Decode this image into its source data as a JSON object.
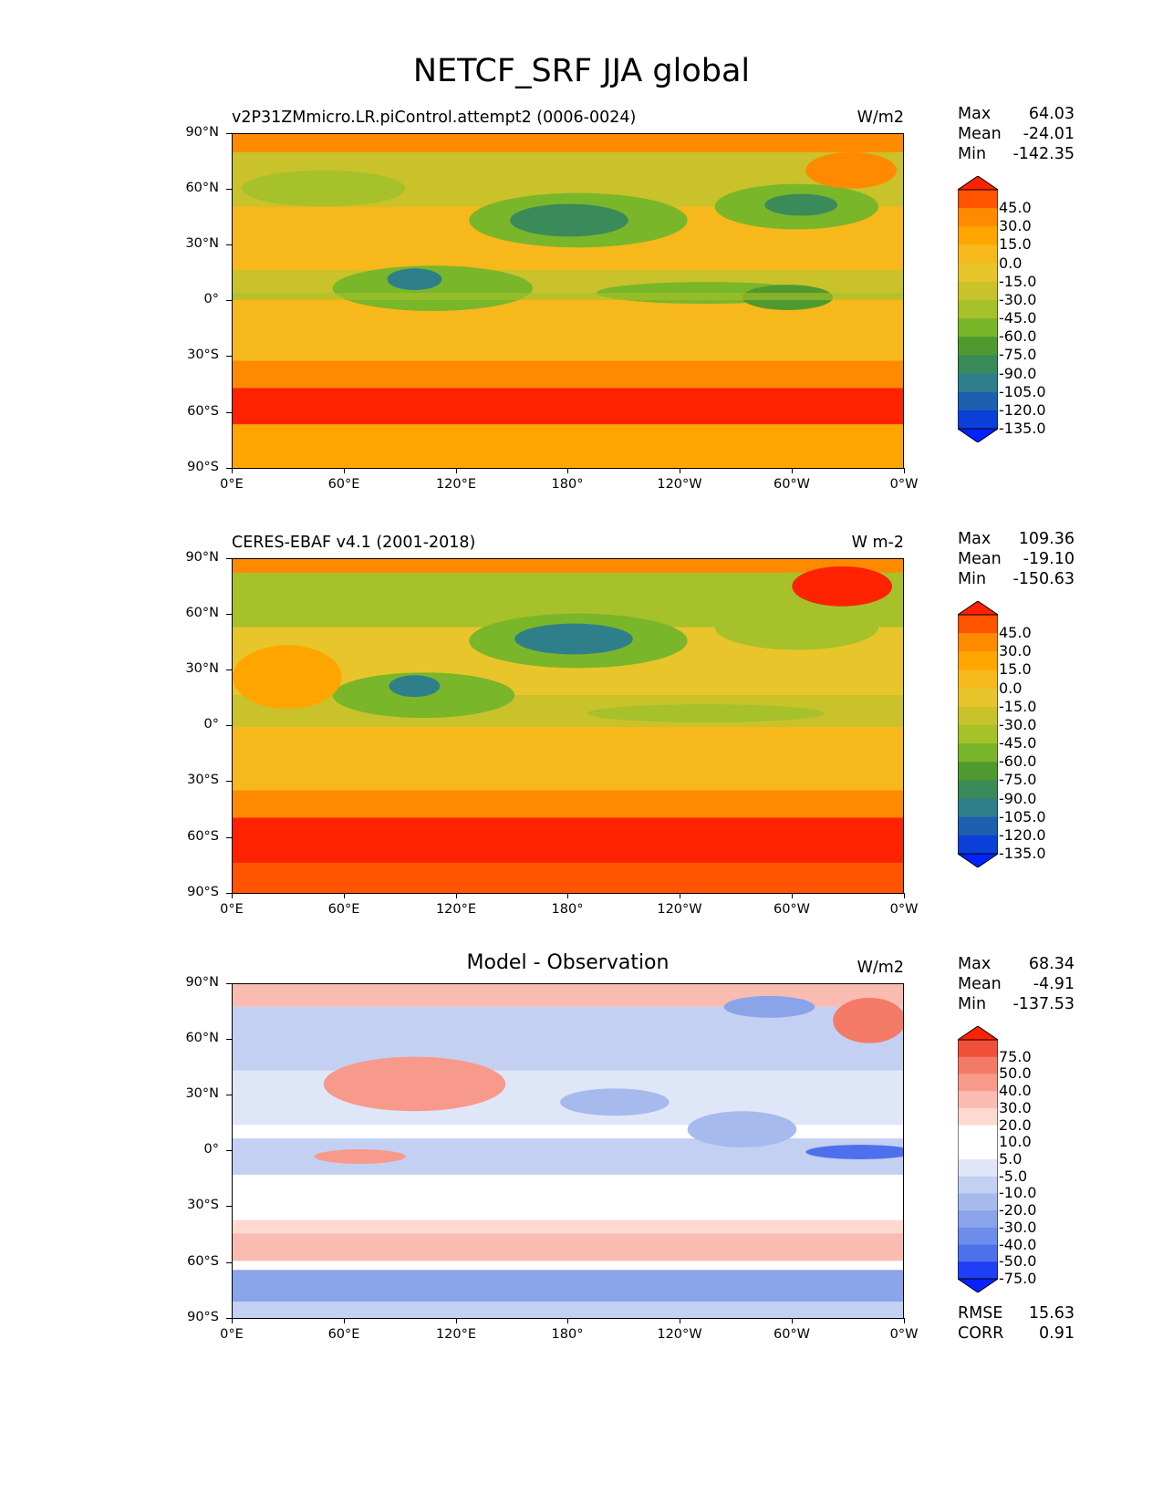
{
  "figure": {
    "title": "NETCF_SRF JJA global"
  },
  "axes": {
    "yticks": [
      "90°N",
      "60°N",
      "30°N",
      "0°",
      "30°S",
      "60°S",
      "90°S"
    ],
    "xticks": [
      "0°E",
      "60°E",
      "120°E",
      "180°",
      "120°W",
      "60°W",
      "0°W"
    ]
  },
  "panels": [
    {
      "title_left": "v2P31ZMmicro.LR.piControl.attempt2 (0006-0024)",
      "title_center": "",
      "units": "W/m2",
      "stats": [
        {
          "label": "Max",
          "value": "64.03"
        },
        {
          "label": "Mean",
          "value": "-24.01"
        },
        {
          "label": "Min",
          "value": "-142.35"
        }
      ],
      "colorbar_labels": [
        "45.0",
        "30.0",
        "15.0",
        "0.0",
        "-15.0",
        "-30.0",
        "-45.0",
        "-60.0",
        "-75.0",
        "-90.0",
        "-105.0",
        "-120.0",
        "-135.0"
      ]
    },
    {
      "title_left": "CERES-EBAF v4.1 (2001-2018)",
      "title_center": "",
      "units": "W m-2",
      "stats": [
        {
          "label": "Max",
          "value": "109.36"
        },
        {
          "label": "Mean",
          "value": "-19.10"
        },
        {
          "label": "Min",
          "value": "-150.63"
        }
      ],
      "colorbar_labels": [
        "45.0",
        "30.0",
        "15.0",
        "0.0",
        "-15.0",
        "-30.0",
        "-45.0",
        "-60.0",
        "-75.0",
        "-90.0",
        "-105.0",
        "-120.0",
        "-135.0"
      ]
    },
    {
      "title_left": "",
      "title_center": "Model - Observation",
      "units": "W/m2",
      "stats": [
        {
          "label": "Max",
          "value": "68.34"
        },
        {
          "label": "Mean",
          "value": "-4.91"
        },
        {
          "label": "Min",
          "value": "-137.53"
        }
      ],
      "colorbar_labels": [
        "75.0",
        "50.0",
        "40.0",
        "30.0",
        "20.0",
        "10.0",
        "5.0",
        "-5.0",
        "-10.0",
        "-20.0",
        "-30.0",
        "-40.0",
        "-50.0",
        "-75.0"
      ],
      "rmse": {
        "label": "RMSE",
        "value": "15.63"
      },
      "corr": {
        "label": "CORR",
        "value": "0.91"
      }
    }
  ],
  "colors": {
    "field_scale": [
      "#ff2200",
      "#ff5400",
      "#ff8a00",
      "#ffa500",
      "#f7b81c",
      "#e8c52a",
      "#c9c22a",
      "#a6c12a",
      "#79b62a",
      "#4f9a2e",
      "#3a8a5a",
      "#2f7f8a",
      "#1f5fb0",
      "#0a3fd8",
      "#0022ff"
    ],
    "diff_scale": [
      "#ff2200",
      "#f0503a",
      "#f47a68",
      "#f79a8c",
      "#fabcb0",
      "#fdd9d2",
      "#ffffff",
      "#ffffff",
      "#dfe6f8",
      "#c3d0f2",
      "#a6baee",
      "#8aa4ea",
      "#6e8cea",
      "#4f70ec",
      "#1f3ff6",
      "#0a22ff"
    ]
  }
}
